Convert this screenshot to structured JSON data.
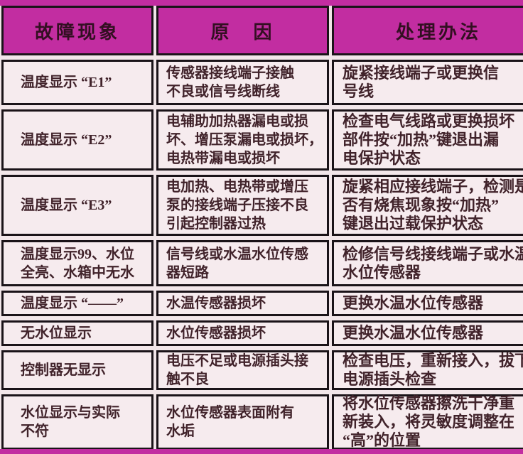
{
  "colors": {
    "accent_magenta": "#c22da1",
    "cell_background": "#f6ebee",
    "border_black": "#1a1318",
    "header_text": "#330f22",
    "body_text": "#41232b"
  },
  "table": {
    "headers": [
      {
        "label": "故障现象"
      },
      {
        "label": "原　因"
      },
      {
        "label": "处理办法"
      }
    ],
    "rows": [
      {
        "fault": "温度显示 “E1”",
        "cause": "传感器接线端子接触\n不良或信号线断线",
        "solution": "旋紧接线端子或更换信\n号线"
      },
      {
        "fault": "温度显示 “E2”",
        "cause": "电辅助加热器漏电或损\n坏、增压泵漏电或损坏，\n电热带漏电或损坏",
        "solution": "检查电气线路或更换损坏\n部件按“加热”键退出漏\n电保护状态"
      },
      {
        "fault": "温度显示 “E3”",
        "cause": "电加热、电热带或增压\n泵的接线端子压接不良\n引起控制器过热",
        "solution": "旋紧相应接线端子，检测是\n否有烧焦现象按“加热”\n键退出过载保护状态"
      },
      {
        "fault": "温度显示99、水位\n全亮、水箱中无水",
        "cause": "信号线或水温水位传感\n器短路",
        "solution": "检修信号线接线端子或水温\n水位传感器"
      },
      {
        "fault": "温度显示 “——”",
        "cause": "水温传感器损坏",
        "solution": "更换水温水位传感器"
      },
      {
        "fault": "无水位显示",
        "cause": "水位传感器损坏",
        "solution": "更换水温水位传感器"
      },
      {
        "fault": "控制器无显示",
        "cause": "电压不足或电源插头接\n触不良",
        "solution": "检查电压，重新接入，拔下\n电源插头检查"
      },
      {
        "fault": "水位显示与实际\n不符",
        "cause": "水位传感器表面附有\n水垢",
        "solution": "将水位传感器擦洗干净重\n新装入，将灵敏度调整在\n“高”的位置"
      }
    ]
  }
}
